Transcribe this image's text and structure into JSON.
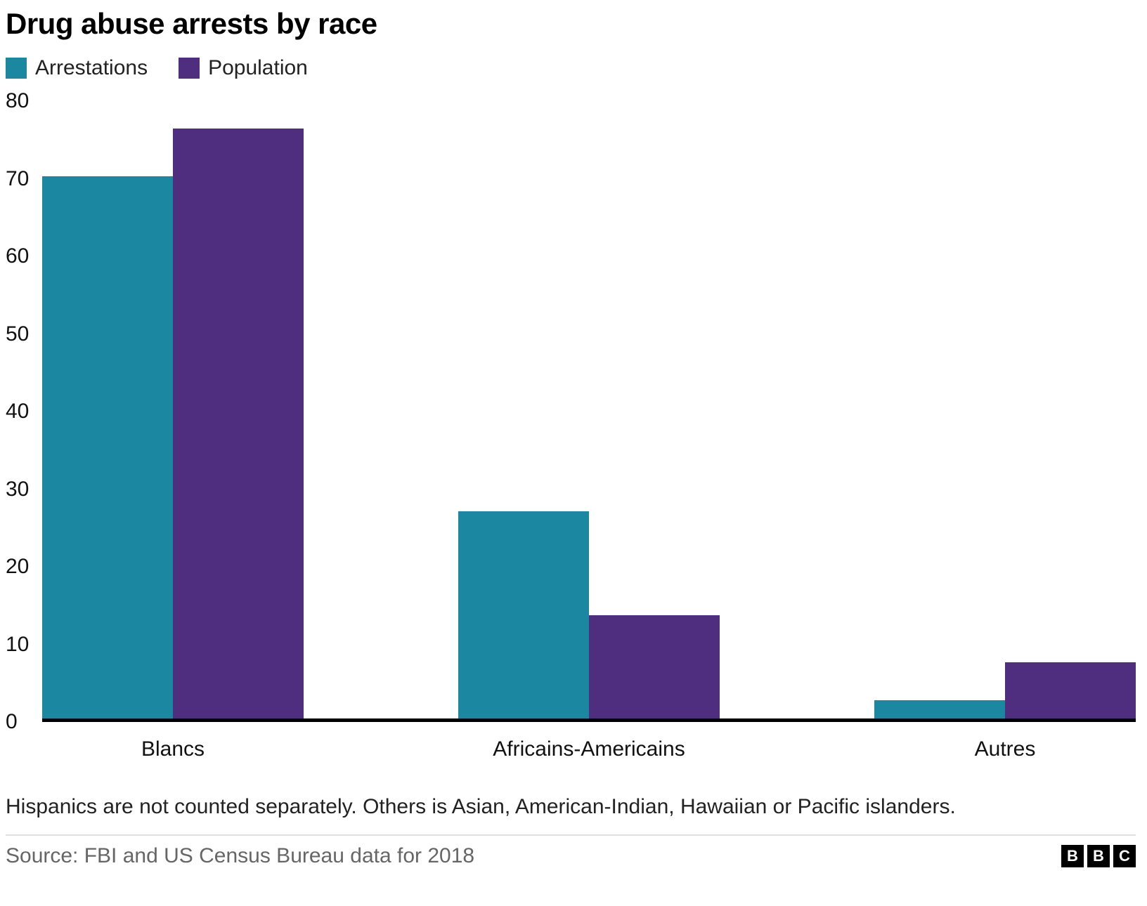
{
  "chart_data": {
    "type": "bar",
    "title": "Drug abuse arrests by race",
    "categories": [
      "Blancs",
      "Africains-Americains",
      "Autres"
    ],
    "series": [
      {
        "name": "Arrestations",
        "color": "#1b87a0",
        "values": [
          70.3,
          26.9,
          2.4
        ]
      },
      {
        "name": "Population",
        "color": "#4f2d7f",
        "values": [
          76.5,
          13.4,
          7.3
        ]
      }
    ],
    "xlabel": "",
    "ylabel": "",
    "ylim": [
      0,
      80
    ],
    "yticks": [
      0,
      10,
      20,
      30,
      40,
      50,
      60,
      70,
      80
    ],
    "grid": false,
    "legend_position": "top-left"
  },
  "footnote": "Hispanics are not counted separately. Others is Asian, American-Indian, Hawaiian or Pacific islanders.",
  "source": "Source: FBI and US Census Bureau data for 2018",
  "logo": {
    "letters": [
      "B",
      "B",
      "C"
    ]
  }
}
